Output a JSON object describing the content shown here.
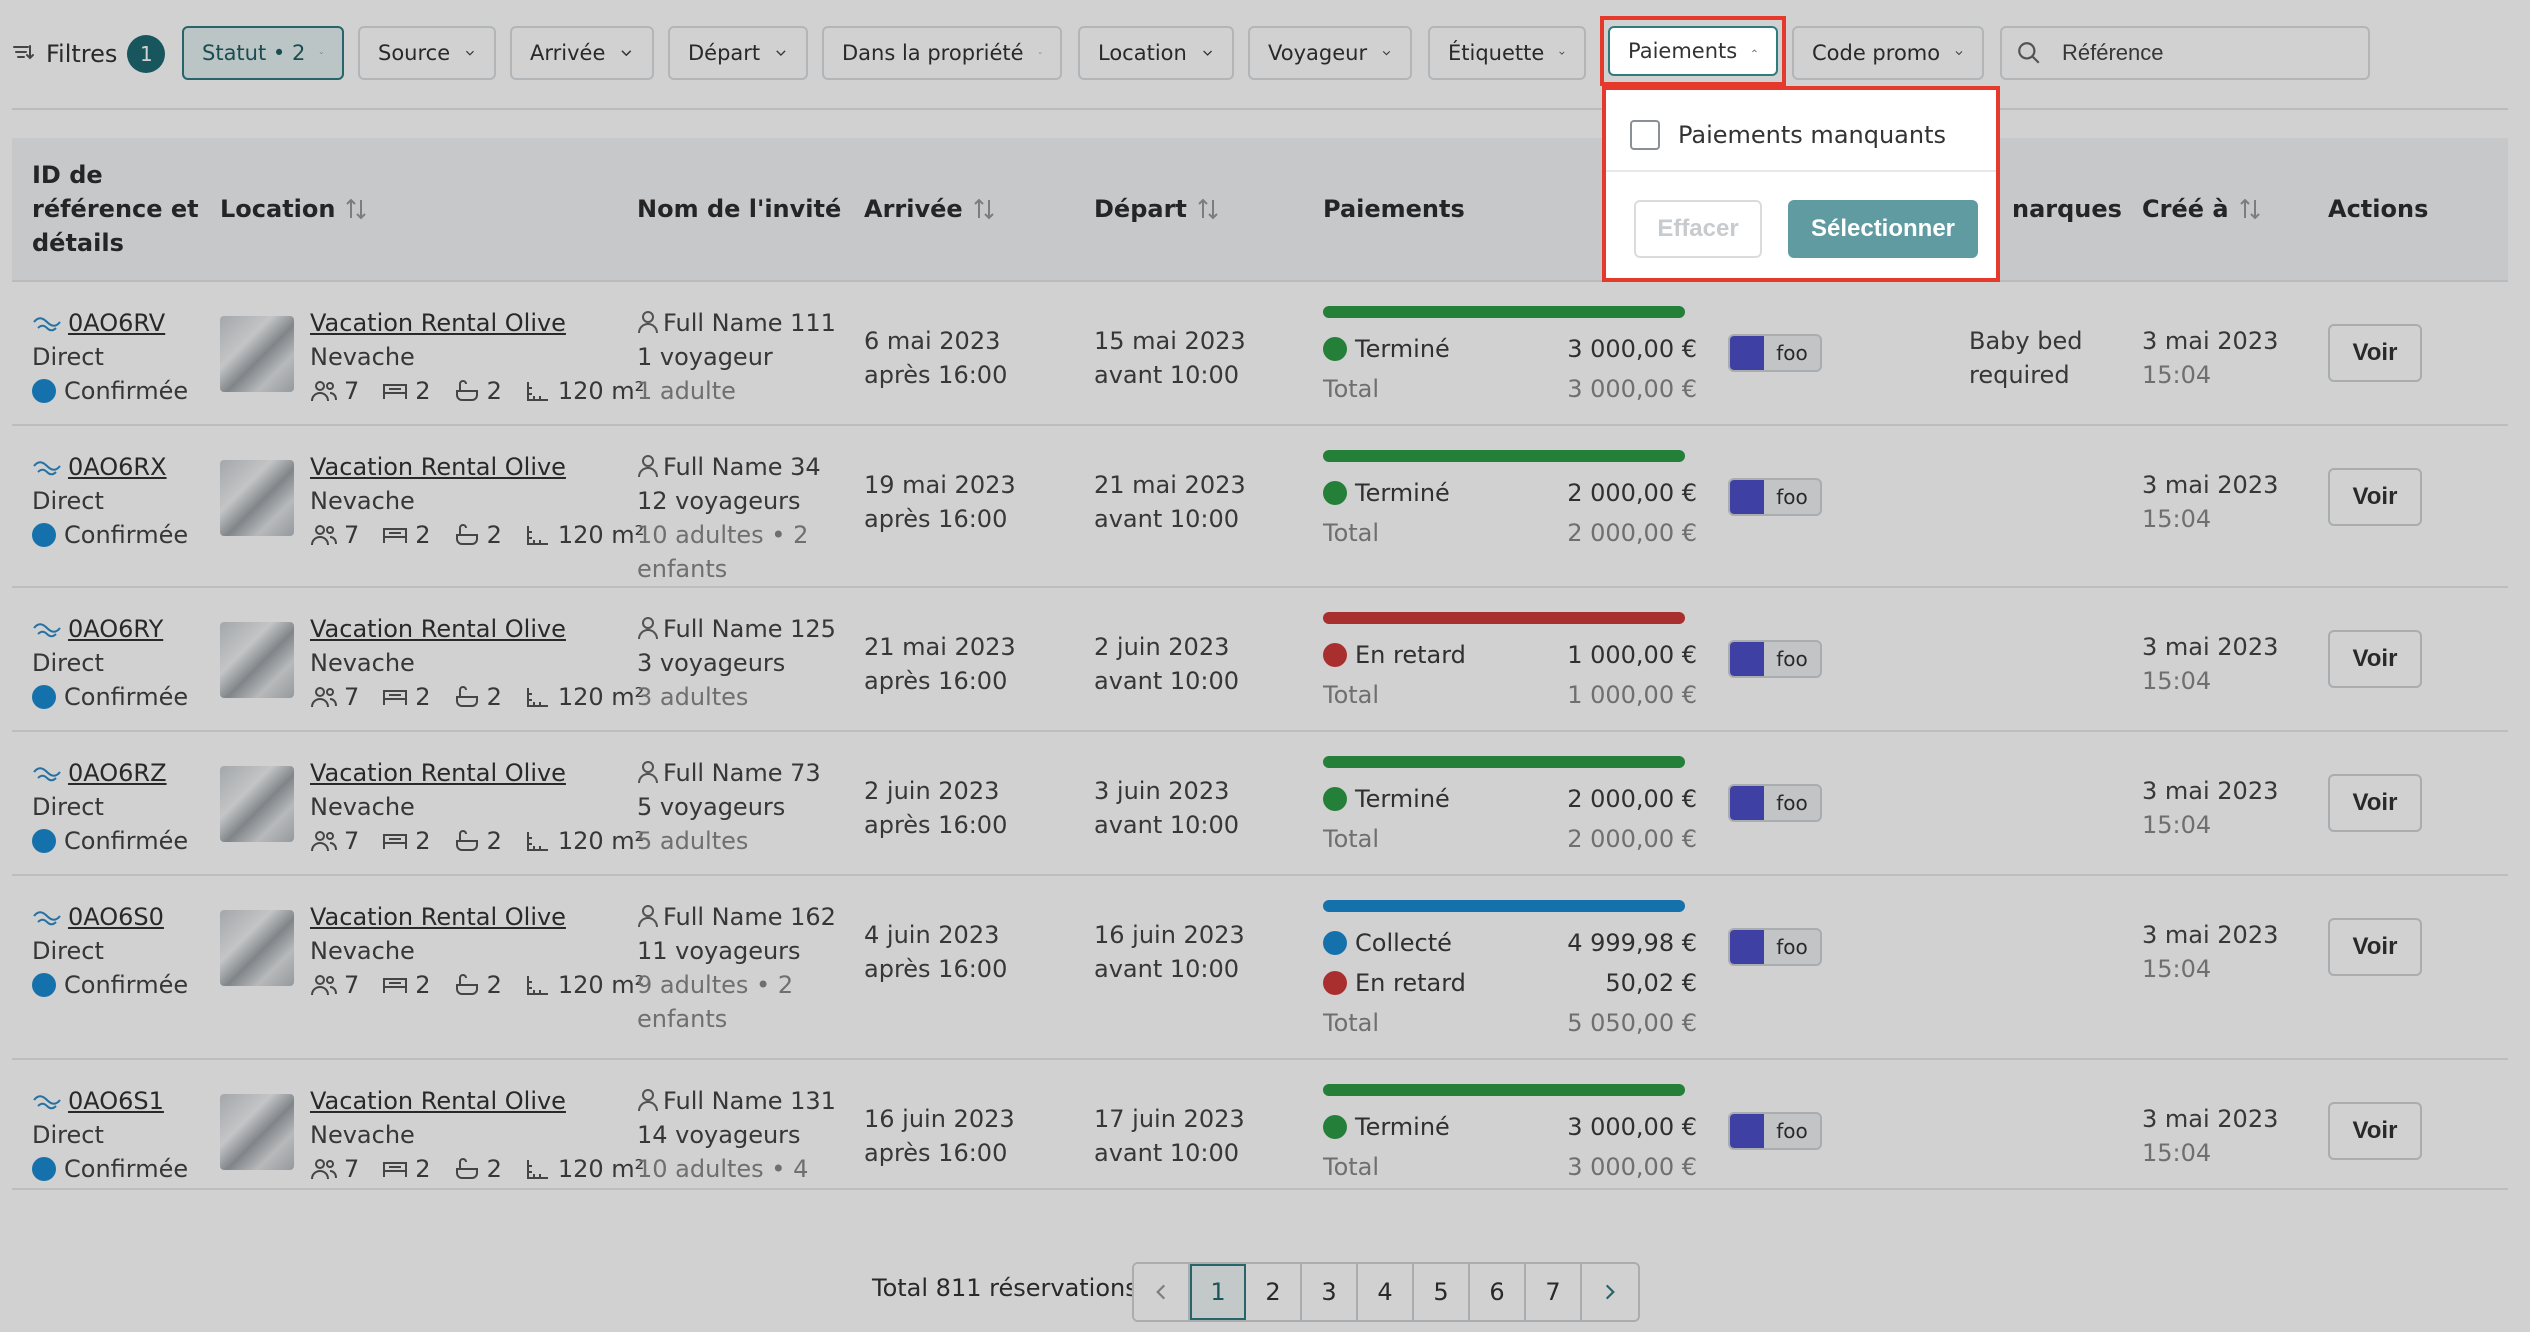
{
  "filters": {
    "label": "Filtres",
    "count": "1",
    "buttons": [
      {
        "label": "Statut • 2",
        "active": true
      },
      {
        "label": "Source"
      },
      {
        "label": "Arrivée"
      },
      {
        "label": "Départ"
      },
      {
        "label": "Dans la propriété"
      },
      {
        "label": "Location"
      },
      {
        "label": "Voyageur"
      },
      {
        "label": "Étiquette"
      },
      {
        "label": "Paiements"
      },
      {
        "label": "Code promo"
      }
    ],
    "search_placeholder": "Référence"
  },
  "dropdown": {
    "option": "Paiements manquants",
    "clear": "Effacer",
    "select": "Sélectionner"
  },
  "table": {
    "headers": {
      "ref": [
        "ID de",
        "référence et",
        "détails"
      ],
      "location": "Location",
      "guest": "Nom de l'invité",
      "arrival": "Arrivée",
      "departure": "Départ",
      "payments": "Paiements",
      "remarks": "narques",
      "created": "Créé à",
      "actions": "Actions"
    },
    "rows": [
      {
        "ref": "0AO6RV",
        "source": "Direct",
        "status": "Confirmée",
        "prop": "Vacation Rental Olive",
        "city": "Nevache",
        "amen": {
          "guests": "7",
          "beds": "2",
          "baths": "2",
          "area": "120 m²"
        },
        "guest": "Full Name 111",
        "travellers": "1 voyageur",
        "detail1": "1 adulte",
        "detail2": "",
        "arr_date": "6 mai 2023",
        "arr_time": "après 16:00",
        "dep_date": "15 mai 2023",
        "dep_time": "avant 10:00",
        "bar": "green",
        "pays": [
          {
            "label": "Terminé",
            "amount": "3 000,00 €",
            "color": "green"
          }
        ],
        "total_label": "Total",
        "total": "3 000,00 €",
        "tag": "foo",
        "remark1": "Baby bed",
        "remark2": "required",
        "created_date": "3 mai 2023",
        "created_time": "15:04",
        "action": "Voir"
      },
      {
        "ref": "0AO6RX",
        "source": "Direct",
        "status": "Confirmée",
        "prop": "Vacation Rental Olive",
        "city": "Nevache",
        "amen": {
          "guests": "7",
          "beds": "2",
          "baths": "2",
          "area": "120 m²"
        },
        "guest": "Full Name 34",
        "travellers": "12 voyageurs",
        "detail1": "10 adultes • 2",
        "detail2": "enfants",
        "arr_date": "19 mai 2023",
        "arr_time": "après 16:00",
        "dep_date": "21 mai 2023",
        "dep_time": "avant 10:00",
        "bar": "green",
        "pays": [
          {
            "label": "Terminé",
            "amount": "2 000,00 €",
            "color": "green"
          }
        ],
        "total_label": "Total",
        "total": "2 000,00 €",
        "tag": "foo",
        "remark1": "",
        "remark2": "",
        "created_date": "3 mai 2023",
        "created_time": "15:04",
        "action": "Voir"
      },
      {
        "ref": "0AO6RY",
        "source": "Direct",
        "status": "Confirmée",
        "prop": "Vacation Rental Olive",
        "city": "Nevache",
        "amen": {
          "guests": "7",
          "beds": "2",
          "baths": "2",
          "area": "120 m²"
        },
        "guest": "Full Name 125",
        "travellers": "3 voyageurs",
        "detail1": "3 adultes",
        "detail2": "",
        "arr_date": "21 mai 2023",
        "arr_time": "après 16:00",
        "dep_date": "2 juin 2023",
        "dep_time": "avant 10:00",
        "bar": "red",
        "pays": [
          {
            "label": "En retard",
            "amount": "1 000,00 €",
            "color": "red"
          }
        ],
        "total_label": "Total",
        "total": "1 000,00 €",
        "tag": "foo",
        "remark1": "",
        "remark2": "",
        "created_date": "3 mai 2023",
        "created_time": "15:04",
        "action": "Voir"
      },
      {
        "ref": "0AO6RZ",
        "source": "Direct",
        "status": "Confirmée",
        "prop": "Vacation Rental Olive",
        "city": "Nevache",
        "amen": {
          "guests": "7",
          "beds": "2",
          "baths": "2",
          "area": "120 m²"
        },
        "guest": "Full Name 73",
        "travellers": "5 voyageurs",
        "detail1": "5 adultes",
        "detail2": "",
        "arr_date": "2 juin 2023",
        "arr_time": "après 16:00",
        "dep_date": "3 juin 2023",
        "dep_time": "avant 10:00",
        "bar": "green",
        "pays": [
          {
            "label": "Terminé",
            "amount": "2 000,00 €",
            "color": "green"
          }
        ],
        "total_label": "Total",
        "total": "2 000,00 €",
        "tag": "foo",
        "remark1": "",
        "remark2": "",
        "created_date": "3 mai 2023",
        "created_time": "15:04",
        "action": "Voir"
      },
      {
        "ref": "0AO6S0",
        "source": "Direct",
        "status": "Confirmée",
        "prop": "Vacation Rental Olive",
        "city": "Nevache",
        "amen": {
          "guests": "7",
          "beds": "2",
          "baths": "2",
          "area": "120 m²"
        },
        "guest": "Full Name 162",
        "travellers": "11 voyageurs",
        "detail1": "9 adultes • 2",
        "detail2": "enfants",
        "arr_date": "4 juin 2023",
        "arr_time": "après 16:00",
        "dep_date": "16 juin 2023",
        "dep_time": "avant 10:00",
        "bar": "blue",
        "pays": [
          {
            "label": "Collecté",
            "amount": "4 999,98 €",
            "color": "blue"
          },
          {
            "label": "En retard",
            "amount": "50,02 €",
            "color": "red"
          }
        ],
        "total_label": "Total",
        "total": "5 050,00 €",
        "tag": "foo",
        "remark1": "",
        "remark2": "",
        "created_date": "3 mai 2023",
        "created_time": "15:04",
        "action": "Voir"
      },
      {
        "ref": "0AO6S1",
        "source": "Direct",
        "status": "Confirmée",
        "prop": "Vacation Rental Olive",
        "city": "Nevache",
        "amen": {
          "guests": "7",
          "beds": "2",
          "baths": "2",
          "area": "120 m²"
        },
        "guest": "Full Name 131",
        "travellers": "14 voyageurs",
        "detail1": "10 adultes • 4",
        "detail2": "",
        "arr_date": "16 juin 2023",
        "arr_time": "après 16:00",
        "dep_date": "17 juin 2023",
        "dep_time": "avant 10:00",
        "bar": "green",
        "pays": [
          {
            "label": "Terminé",
            "amount": "3 000,00 €",
            "color": "green"
          }
        ],
        "total_label": "Total",
        "total": "3 000,00 €",
        "tag": "foo",
        "remark1": "",
        "remark2": "",
        "created_date": "3 mai 2023",
        "created_time": "15:04",
        "action": "Voir"
      }
    ]
  },
  "pagination": {
    "total": "Total 811 réservations",
    "pages": [
      "1",
      "2",
      "3",
      "4",
      "5",
      "6",
      "7"
    ],
    "current": "1"
  },
  "colors": {
    "green": "#2d9b45",
    "red": "#cf3a3a",
    "blue": "#1a8ad1",
    "accent": "#2f7c80",
    "highlight": "#e53a2b",
    "tag": "#4c4fc8"
  }
}
